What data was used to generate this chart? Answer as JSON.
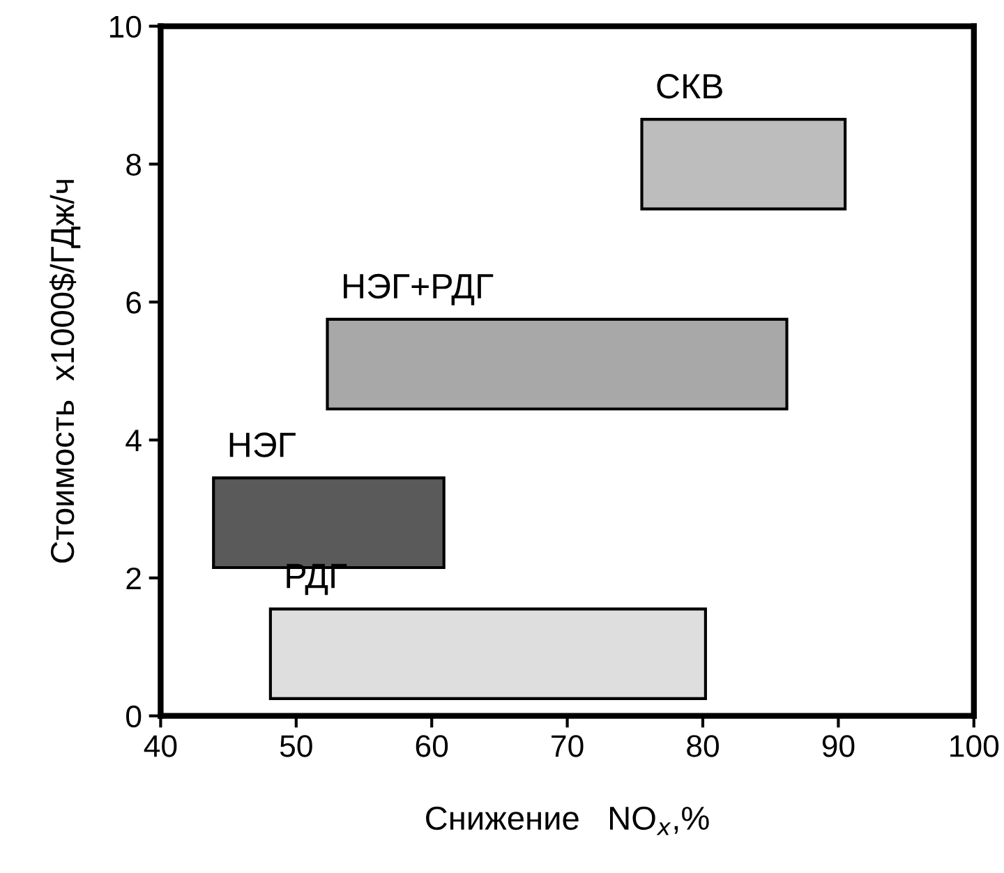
{
  "chart_data": {
    "type": "bar",
    "orientation": "horizontal",
    "legend": false,
    "xlabel": "Снижение   NO$_{x}$,%",
    "ylabel": "Стоимость  x1000$/ГДж/ч",
    "xlim": [
      40,
      100
    ],
    "xticks": [
      40,
      50,
      60,
      70,
      80,
      90,
      100
    ],
    "ylim": [
      0,
      10
    ],
    "yticks": [
      0,
      2,
      4,
      6,
      8,
      10
    ],
    "grid": false,
    "series": [
      {
        "name": "СКВ",
        "color": "#bdbdbd",
        "x": [
          8.0
        ],
        "base": [
          75.5
        ],
        "values": [
          15.0
        ]
      },
      {
        "name": "НЭГ+РДГ",
        "color": "#a8a8a8",
        "x": [
          5.1
        ],
        "base": [
          52.3
        ],
        "values": [
          33.9
        ]
      },
      {
        "name": "НЭГ",
        "color": "#5a5a5a",
        "x": [
          2.8
        ],
        "base": [
          43.9
        ],
        "values": [
          17.0
        ]
      },
      {
        "name": "РДГ",
        "color": "#dedede",
        "x": [
          0.9
        ],
        "base": [
          48.1
        ],
        "values": [
          32.1
        ]
      }
    ]
  }
}
